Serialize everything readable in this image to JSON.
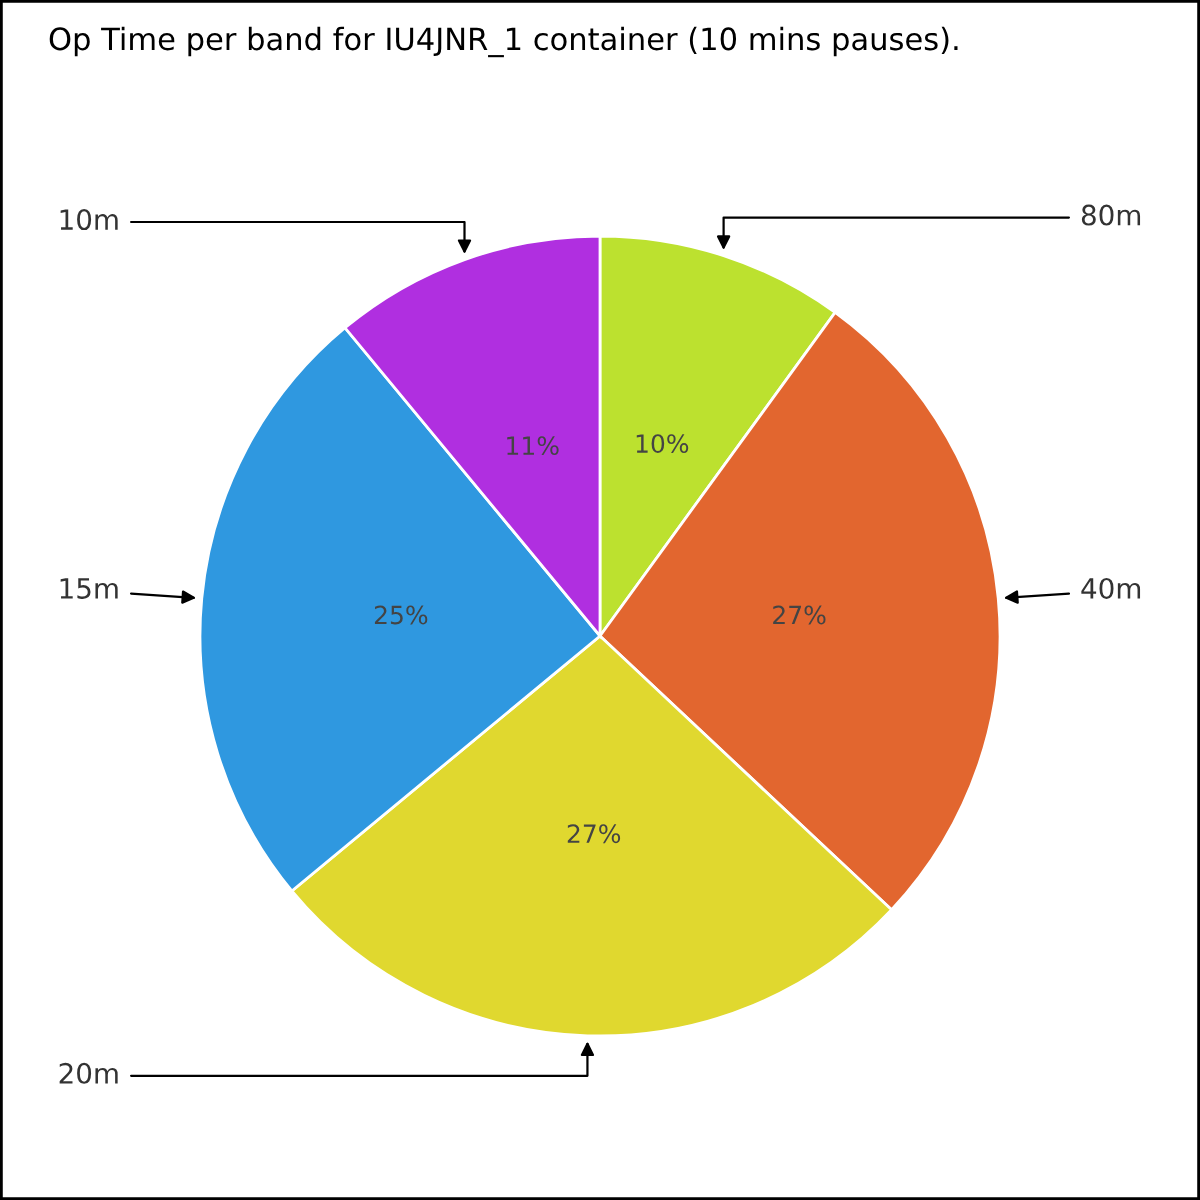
{
  "chart_data": {
    "type": "pie",
    "title": "Op Time per band for IU4JNR_1 container (10 mins pauses).",
    "categories": [
      "80m",
      "40m",
      "20m",
      "15m",
      "10m"
    ],
    "values": [
      10,
      27,
      27,
      25,
      11
    ],
    "value_labels": [
      "10%",
      "27%",
      "27%",
      "25%",
      "11%"
    ],
    "colors": [
      "#bce12f",
      "#e2662f",
      "#e0d82f",
      "#2f98e0",
      "#b02fe0"
    ],
    "legend": false
  }
}
